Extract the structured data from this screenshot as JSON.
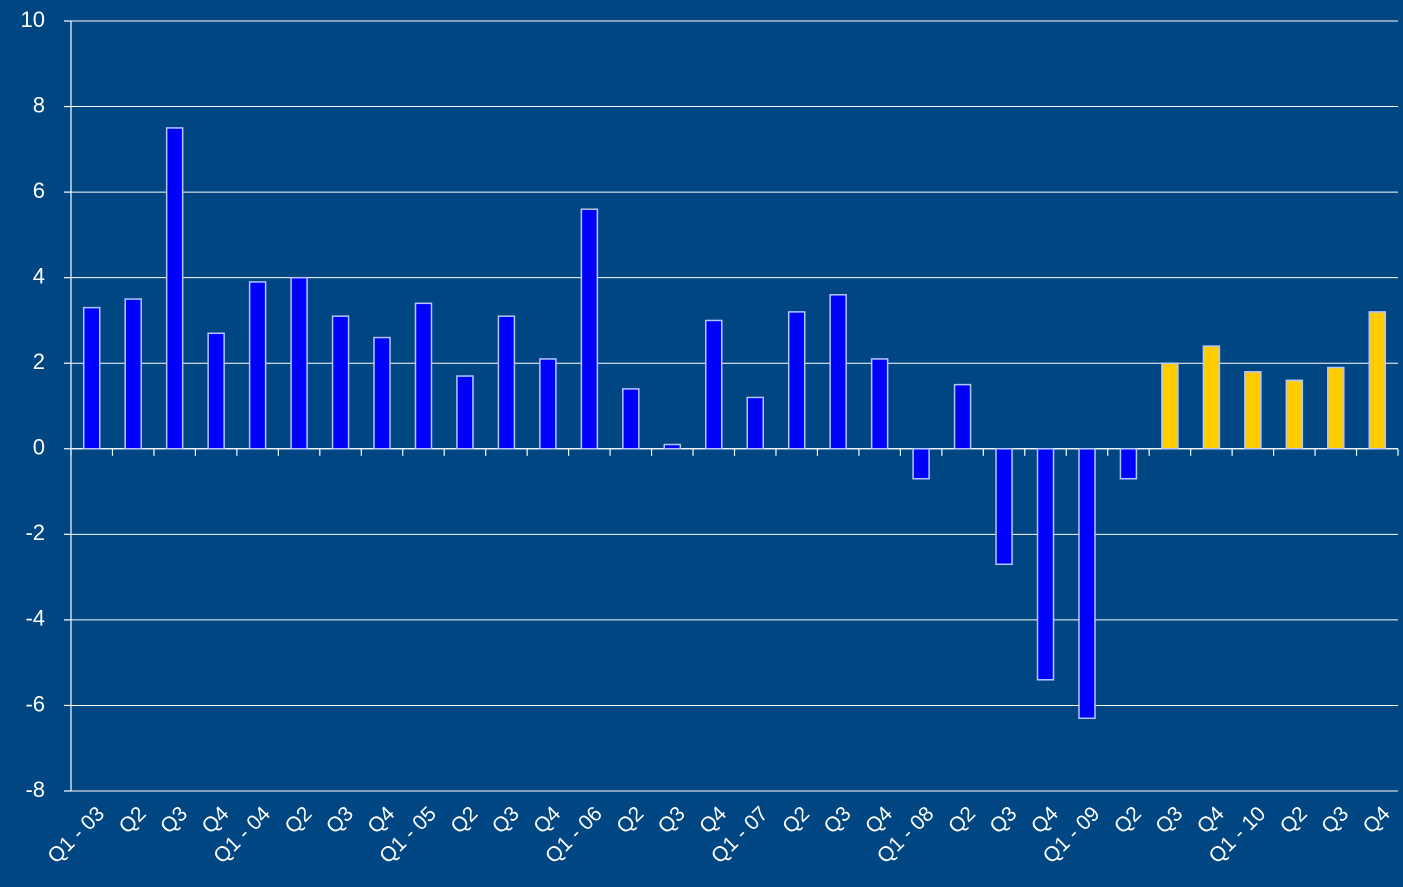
{
  "chart_data": {
    "type": "bar",
    "categories": [
      "Q1 - 03",
      "Q2",
      "Q3",
      "Q4",
      "Q1 - 04",
      "Q2",
      "Q3",
      "Q4",
      "Q1 - 05",
      "Q2",
      "Q3",
      "Q4",
      "Q1 - 06",
      "Q2",
      "Q3",
      "Q4",
      "Q1 - 07",
      "Q2",
      "Q3",
      "Q4",
      "Q1 - 08",
      "Q2",
      "Q3",
      "Q4",
      "Q1 - 09",
      "Q2",
      "Q3",
      "Q4",
      "Q1 - 10",
      "Q2",
      "Q3",
      "Q4"
    ],
    "values": [
      3.3,
      3.5,
      7.5,
      2.7,
      3.9,
      4.0,
      3.1,
      2.6,
      3.4,
      1.7,
      3.1,
      2.1,
      5.6,
      1.4,
      0.1,
      3.0,
      1.2,
      3.2,
      3.6,
      2.1,
      -0.7,
      1.5,
      -2.7,
      -5.4,
      -6.3,
      -0.7,
      2.0,
      2.4,
      1.8,
      1.6,
      1.9,
      3.2
    ],
    "colors": [
      "#0000ff",
      "#0000ff",
      "#0000ff",
      "#0000ff",
      "#0000ff",
      "#0000ff",
      "#0000ff",
      "#0000ff",
      "#0000ff",
      "#0000ff",
      "#0000ff",
      "#0000ff",
      "#0000ff",
      "#0000ff",
      "#0000ff",
      "#0000ff",
      "#0000ff",
      "#0000ff",
      "#0000ff",
      "#0000ff",
      "#0000ff",
      "#0000ff",
      "#0000ff",
      "#0000ff",
      "#0000ff",
      "#0000ff",
      "#ffcc00",
      "#ffcc00",
      "#ffcc00",
      "#ffcc00",
      "#ffcc00",
      "#ffcc00"
    ],
    "ylim": [
      -8,
      10
    ],
    "yticks": [
      -8,
      -6,
      -4,
      -2,
      0,
      2,
      4,
      6,
      8,
      10
    ],
    "grid": true
  }
}
